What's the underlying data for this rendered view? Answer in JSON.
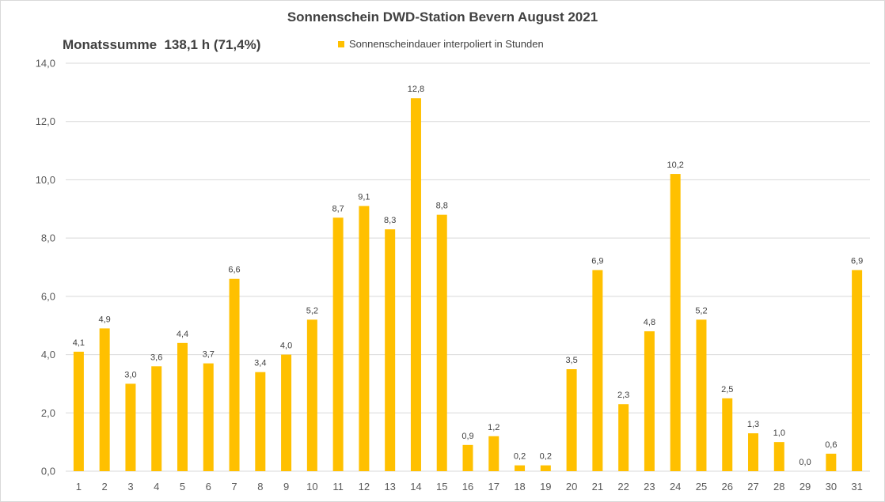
{
  "chart_data": {
    "type": "bar",
    "title": "Sonnenschein DWD-Station Bevern August 2021",
    "annotation": "Monatssumme  138,1 h (71,4%)",
    "xlabel": "",
    "ylabel": "",
    "ylim": [
      0,
      14
    ],
    "ytick_step": 2,
    "yticks": [
      "0,0",
      "2,0",
      "4,0",
      "6,0",
      "8,0",
      "10,0",
      "12,0",
      "14,0"
    ],
    "grid": true,
    "legend_position": "top-center",
    "categories": [
      "1",
      "2",
      "3",
      "4",
      "5",
      "6",
      "7",
      "8",
      "9",
      "10",
      "11",
      "12",
      "13",
      "14",
      "15",
      "16",
      "17",
      "18",
      "19",
      "20",
      "21",
      "22",
      "23",
      "24",
      "25",
      "26",
      "27",
      "28",
      "29",
      "30",
      "31"
    ],
    "series": [
      {
        "name": "Sonnenscheindauer interpoliert in Stunden",
        "color": "#ffc000",
        "values": [
          4.1,
          4.9,
          3.0,
          3.6,
          4.4,
          3.7,
          6.6,
          3.4,
          4.0,
          5.2,
          8.7,
          9.1,
          8.3,
          12.8,
          8.8,
          0.9,
          1.2,
          0.2,
          0.2,
          3.5,
          6.9,
          2.3,
          4.8,
          10.2,
          5.2,
          2.5,
          1.3,
          1.0,
          0.0,
          0.6,
          6.9
        ],
        "labels": [
          "4,1",
          "4,9",
          "3,0",
          "3,6",
          "4,4",
          "3,7",
          "6,6",
          "3,4",
          "4,0",
          "5,2",
          "8,7",
          "9,1",
          "8,3",
          "12,8",
          "8,8",
          "0,9",
          "1,2",
          "0,2",
          "0,2",
          "3,5",
          "6,9",
          "2,3",
          "4,8",
          "10,2",
          "5,2",
          "2,5",
          "1,3",
          "1,0",
          "0,0",
          "0,6",
          "6,9"
        ]
      }
    ],
    "colors": {
      "bar": "#ffc000",
      "gridline": "#d9d9d9",
      "axis": "#d9d9d9"
    }
  }
}
